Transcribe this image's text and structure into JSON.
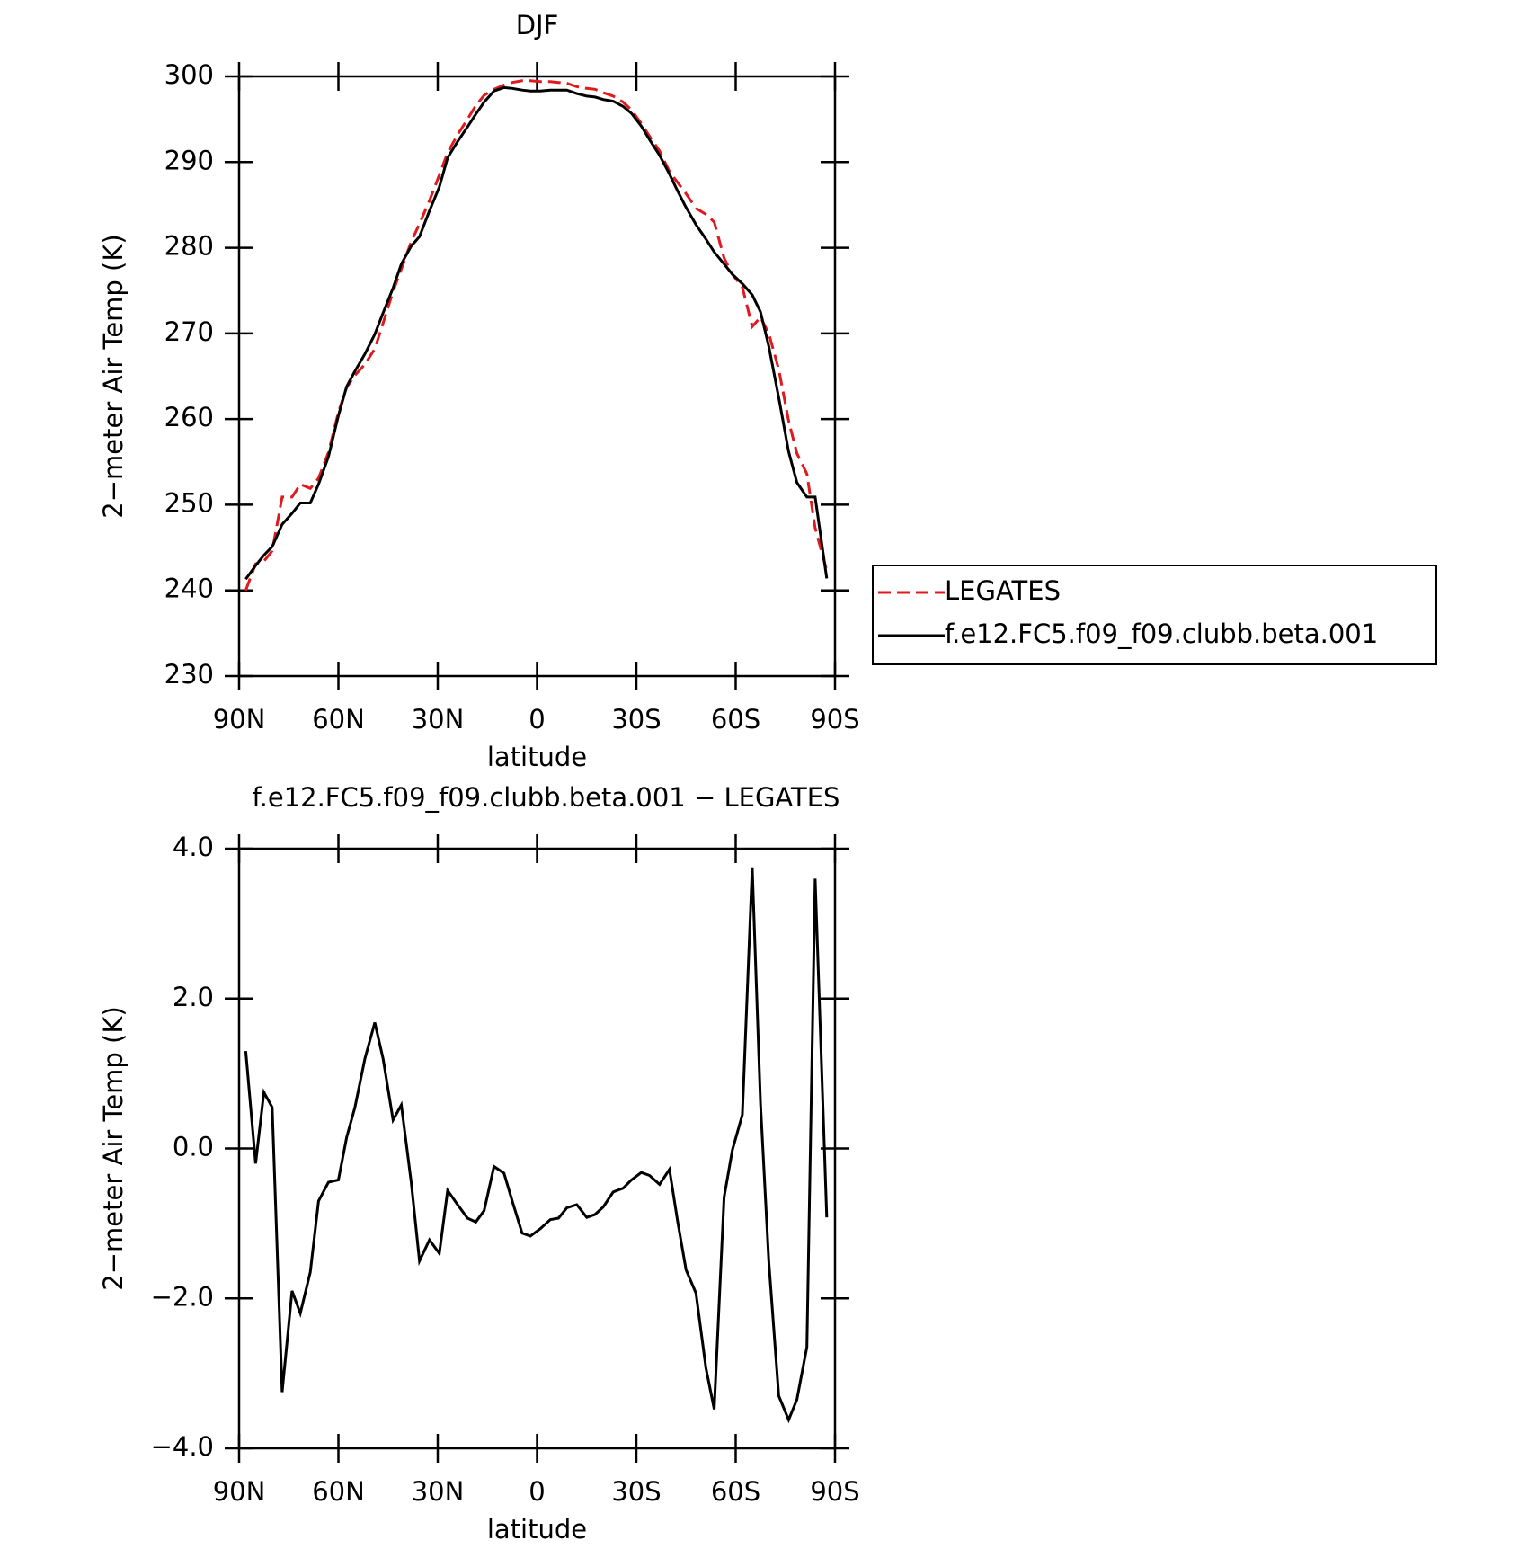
{
  "chart_data": [
    {
      "type": "line",
      "title": "DJF",
      "xlabel": "latitude",
      "ylabel": "2−meter Air Temp (K)",
      "x": [
        88,
        85,
        82.5,
        80,
        77,
        74,
        71.5,
        68.5,
        66,
        63,
        60,
        57.5,
        55,
        52,
        49,
        46.5,
        43.5,
        41,
        38,
        35.5,
        32.5,
        29.5,
        27,
        24,
        21,
        18.5,
        16,
        13,
        10,
        7.5,
        4.5,
        2,
        -1,
        -4,
        -6.5,
        -9,
        -12,
        -15,
        -17.5,
        -20,
        -23,
        -26,
        -28.5,
        -31.5,
        -34,
        -37,
        -40,
        -42.5,
        -45,
        -48,
        -51,
        -53.5,
        -56.5,
        -59,
        -62,
        -65,
        -67.5,
        -70,
        -73,
        -76,
        -78.5,
        -81.5,
        -84,
        -87.5
      ],
      "series": [
        {
          "name": "LEGATES",
          "color": "#e0191e",
          "linestyle": "dashed",
          "values": [
            240.0,
            243.1,
            243.4,
            244.6,
            250.9,
            250.9,
            252.4,
            251.9,
            253.1,
            256.1,
            260.8,
            263.7,
            265.1,
            266.4,
            268.2,
            271.2,
            274.9,
            277.5,
            280.7,
            282.8,
            285.5,
            288.5,
            291.1,
            293.2,
            295.0,
            296.6,
            297.8,
            298.5,
            299.0,
            299.3,
            299.5,
            299.5,
            299.4,
            299.4,
            299.3,
            299.2,
            298.8,
            298.6,
            298.5,
            298.1,
            297.7,
            297.0,
            296.1,
            294.5,
            293.0,
            291.3,
            288.9,
            287.6,
            286.3,
            284.6,
            283.9,
            283.0,
            278.8,
            276.9,
            275.4,
            270.8,
            271.9,
            270.0,
            265.8,
            259.8,
            256.0,
            253.6,
            247.3,
            242.3
          ]
        },
        {
          "name": "f.e12.FC5.f09_f09.clubb.beta.001",
          "color": "#000000",
          "linestyle": "solid",
          "values": [
            241.3,
            242.9,
            244.1,
            245.1,
            247.7,
            249.0,
            250.2,
            250.2,
            252.4,
            255.6,
            260.4,
            263.8,
            265.6,
            267.6,
            269.9,
            272.4,
            275.3,
            278.1,
            280.2,
            281.3,
            284.3,
            287.1,
            290.5,
            292.4,
            294.1,
            295.6,
            297.0,
            298.3,
            298.7,
            298.6,
            298.4,
            298.3,
            298.3,
            298.4,
            298.4,
            298.4,
            298.0,
            297.7,
            297.6,
            297.3,
            297.1,
            296.5,
            295.7,
            294.2,
            292.6,
            290.8,
            288.6,
            286.6,
            284.7,
            282.7,
            281.0,
            279.5,
            278.1,
            276.9,
            275.8,
            274.5,
            272.5,
            268.5,
            262.5,
            256.2,
            252.6,
            250.9,
            250.9,
            241.4
          ]
        }
      ],
      "xlim": [
        90,
        -90
      ],
      "xticks": [
        {
          "value": 90,
          "label": "90N"
        },
        {
          "value": 60,
          "label": "60N"
        },
        {
          "value": 30,
          "label": "30N"
        },
        0,
        {
          "value": -30,
          "label": "30S"
        },
        {
          "value": -60,
          "label": "60S"
        },
        {
          "value": -90,
          "label": "90S"
        }
      ],
      "ylim": [
        230,
        300
      ],
      "yticks": [
        230,
        240,
        250,
        260,
        270,
        280,
        290,
        300
      ],
      "legend": "right"
    },
    {
      "type": "line",
      "title": "f.e12.FC5.f09_f09.clubb.beta.001 − LEGATES",
      "xlabel": "latitude",
      "ylabel": "2−meter Air Temp (K)",
      "x": [
        88,
        85,
        82.5,
        80,
        77,
        74,
        71.5,
        68.5,
        66,
        63,
        60,
        57.5,
        55,
        52,
        49,
        46.5,
        43.5,
        41,
        38,
        35.5,
        32.5,
        29.5,
        27,
        24,
        21,
        18.5,
        16,
        13,
        10,
        7.5,
        4.5,
        2,
        -1,
        -4,
        -6.5,
        -9,
        -12,
        -15,
        -17.5,
        -20,
        -23,
        -26,
        -28.5,
        -31.5,
        -34,
        -37,
        -40,
        -42.5,
        -45,
        -48,
        -51,
        -53.5,
        -56.5,
        -59,
        -62,
        -65,
        -67.5,
        -70,
        -73,
        -76,
        -78.5,
        -81.5,
        -84,
        -87.5
      ],
      "series": [
        {
          "color": "#000000",
          "linestyle": "solid",
          "values": [
            1.3,
            -0.2,
            0.75,
            0.55,
            -3.25,
            -1.9,
            -2.2,
            -1.65,
            -0.7,
            -0.45,
            -0.42,
            0.15,
            0.55,
            1.2,
            1.68,
            1.2,
            0.38,
            0.58,
            -0.45,
            -1.5,
            -1.22,
            -1.4,
            -0.56,
            -0.75,
            -0.93,
            -0.98,
            -0.83,
            -0.24,
            -0.33,
            -0.7,
            -1.13,
            -1.17,
            -1.07,
            -0.95,
            -0.93,
            -0.79,
            -0.75,
            -0.92,
            -0.88,
            -0.78,
            -0.58,
            -0.53,
            -0.42,
            -0.32,
            -0.36,
            -0.48,
            -0.28,
            -0.98,
            -1.62,
            -1.93,
            -2.93,
            -3.48,
            -0.65,
            -0.02,
            0.45,
            3.75,
            0.6,
            -1.5,
            -3.3,
            -3.62,
            -3.35,
            -2.65,
            3.6,
            -0.92
          ]
        }
      ],
      "xlim": [
        90,
        -90
      ],
      "xticks": [
        {
          "value": 90,
          "label": "90N"
        },
        {
          "value": 60,
          "label": "60N"
        },
        {
          "value": 30,
          "label": "30N"
        },
        0,
        {
          "value": -30,
          "label": "30S"
        },
        {
          "value": -60,
          "label": "60S"
        },
        {
          "value": -90,
          "label": "90S"
        }
      ],
      "ylim": [
        -4,
        4
      ],
      "yticks": [
        {
          "value": -4,
          "label": "−4.0"
        },
        {
          "value": -2,
          "label": "−2.0"
        },
        {
          "value": 0,
          "label": "0.0"
        },
        {
          "value": 2,
          "label": "2.0"
        },
        {
          "value": 4,
          "label": "4.0"
        }
      ]
    }
  ]
}
